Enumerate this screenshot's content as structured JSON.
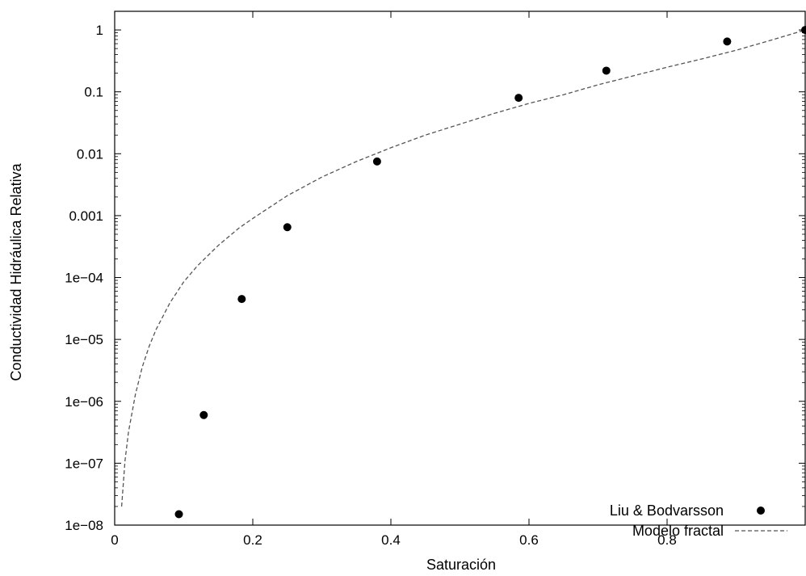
{
  "chart_data": {
    "type": "scatter",
    "xlabel": "Saturación",
    "ylabel": "Conductividad Hidráulica Relativa",
    "xlim": [
      0,
      1
    ],
    "ylim": [
      1e-08,
      2
    ],
    "yscale": "log",
    "xticks": [
      0,
      0.2,
      0.4,
      0.6,
      0.8
    ],
    "xtick_labels": [
      "0",
      "0.2",
      "0.4",
      "0.6",
      "0.8"
    ],
    "yticks": [
      1e-08,
      1e-07,
      1e-06,
      1e-05,
      0.0001,
      0.001,
      0.01,
      0.1,
      1
    ],
    "ytick_labels": [
      "1e−08",
      "1e−07",
      "1e−06",
      "1e−05",
      "1e−04",
      "0.001",
      "0.01",
      "0.1",
      "1"
    ],
    "grid": false,
    "legend_position": "bottom-right",
    "series": [
      {
        "name": "Liu & Bodvarsson",
        "kind": "points",
        "color": "#000000",
        "x": [
          0.093,
          0.129,
          0.184,
          0.25,
          0.38,
          0.585,
          0.712,
          0.887,
          1.0
        ],
        "y": [
          1.5e-08,
          6e-07,
          4.5e-05,
          0.00065,
          0.0075,
          0.08,
          0.22,
          0.65,
          1.0
        ]
      },
      {
        "name": "Modelo fractal",
        "kind": "line",
        "style": "dashed",
        "color": "#555555",
        "x": [
          0.01,
          0.015,
          0.02,
          0.03,
          0.04,
          0.05,
          0.06,
          0.08,
          0.1,
          0.12,
          0.15,
          0.18,
          0.2,
          0.25,
          0.3,
          0.35,
          0.4,
          0.45,
          0.5,
          0.55,
          0.6,
          0.65,
          0.7,
          0.75,
          0.8,
          0.85,
          0.9,
          0.95,
          1.0
        ],
        "y": [
          2e-08,
          1.1e-07,
          3.2e-07,
          1.3e-06,
          3.6e-06,
          7.8e-06,
          1.45e-05,
          3.9e-05,
          8.5e-05,
          0.000155,
          0.00033,
          0.00063,
          0.0009,
          0.0021,
          0.0042,
          0.0075,
          0.0125,
          0.02,
          0.03,
          0.045,
          0.065,
          0.09,
          0.13,
          0.18,
          0.25,
          0.34,
          0.47,
          0.68,
          1.0
        ]
      }
    ]
  }
}
